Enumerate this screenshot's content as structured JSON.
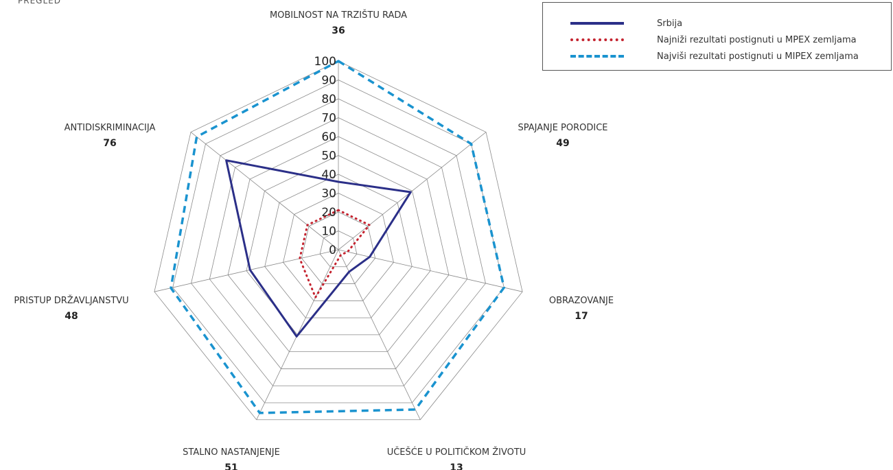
{
  "page_title": "PREGLED",
  "legend": {
    "position": "top-right",
    "items": [
      {
        "label": "Srbija",
        "color": "#2b2f88",
        "style": "solid"
      },
      {
        "label": "Najniži rezultati postignuti u MPEX zemljama",
        "color": "#c4232f",
        "style": "dotted"
      },
      {
        "label": "Najviši rezultati postignuti u MIPEX zemljama",
        "color": "#1a93cf",
        "style": "dashed"
      }
    ]
  },
  "chart_data": {
    "type": "radar",
    "title": "",
    "categories": [
      "MOBILNOST NA TRZIŠTU RADA",
      "SPAJANJE PORODICE",
      "OBRAZOVANJE",
      "UČEŠĆE U POLITIČKOM ŽIVOTU",
      "STALNO NASTANJENJE",
      "PRISTUP DRŽAVLJANSTVU",
      "ANTIDISKRIMINACIJA"
    ],
    "category_values": [
      "36",
      "49",
      "17",
      "13",
      "51",
      "48",
      "76"
    ],
    "r_ticks": [
      "0",
      "10",
      "20",
      "30",
      "40",
      "50",
      "60",
      "70",
      "80",
      "90",
      "100"
    ],
    "rlim": [
      0,
      100
    ],
    "grid": true,
    "series": [
      {
        "name": "Srbija",
        "values": [
          36,
          49,
          17,
          13,
          51,
          48,
          76
        ],
        "color": "#2b2f88",
        "style": "solid"
      },
      {
        "name": "Najniži rezultati postignuti u MPEX zemljama",
        "values": [
          21,
          21,
          5,
          3,
          28,
          21,
          21
        ],
        "color": "#c4232f",
        "style": "dotted"
      },
      {
        "name": "Najviši rezultati postignuti u MIPEX zemljama",
        "values": [
          100,
          90,
          90,
          94,
          96,
          91,
          96
        ],
        "color": "#1a93cf",
        "style": "dashed"
      }
    ]
  }
}
